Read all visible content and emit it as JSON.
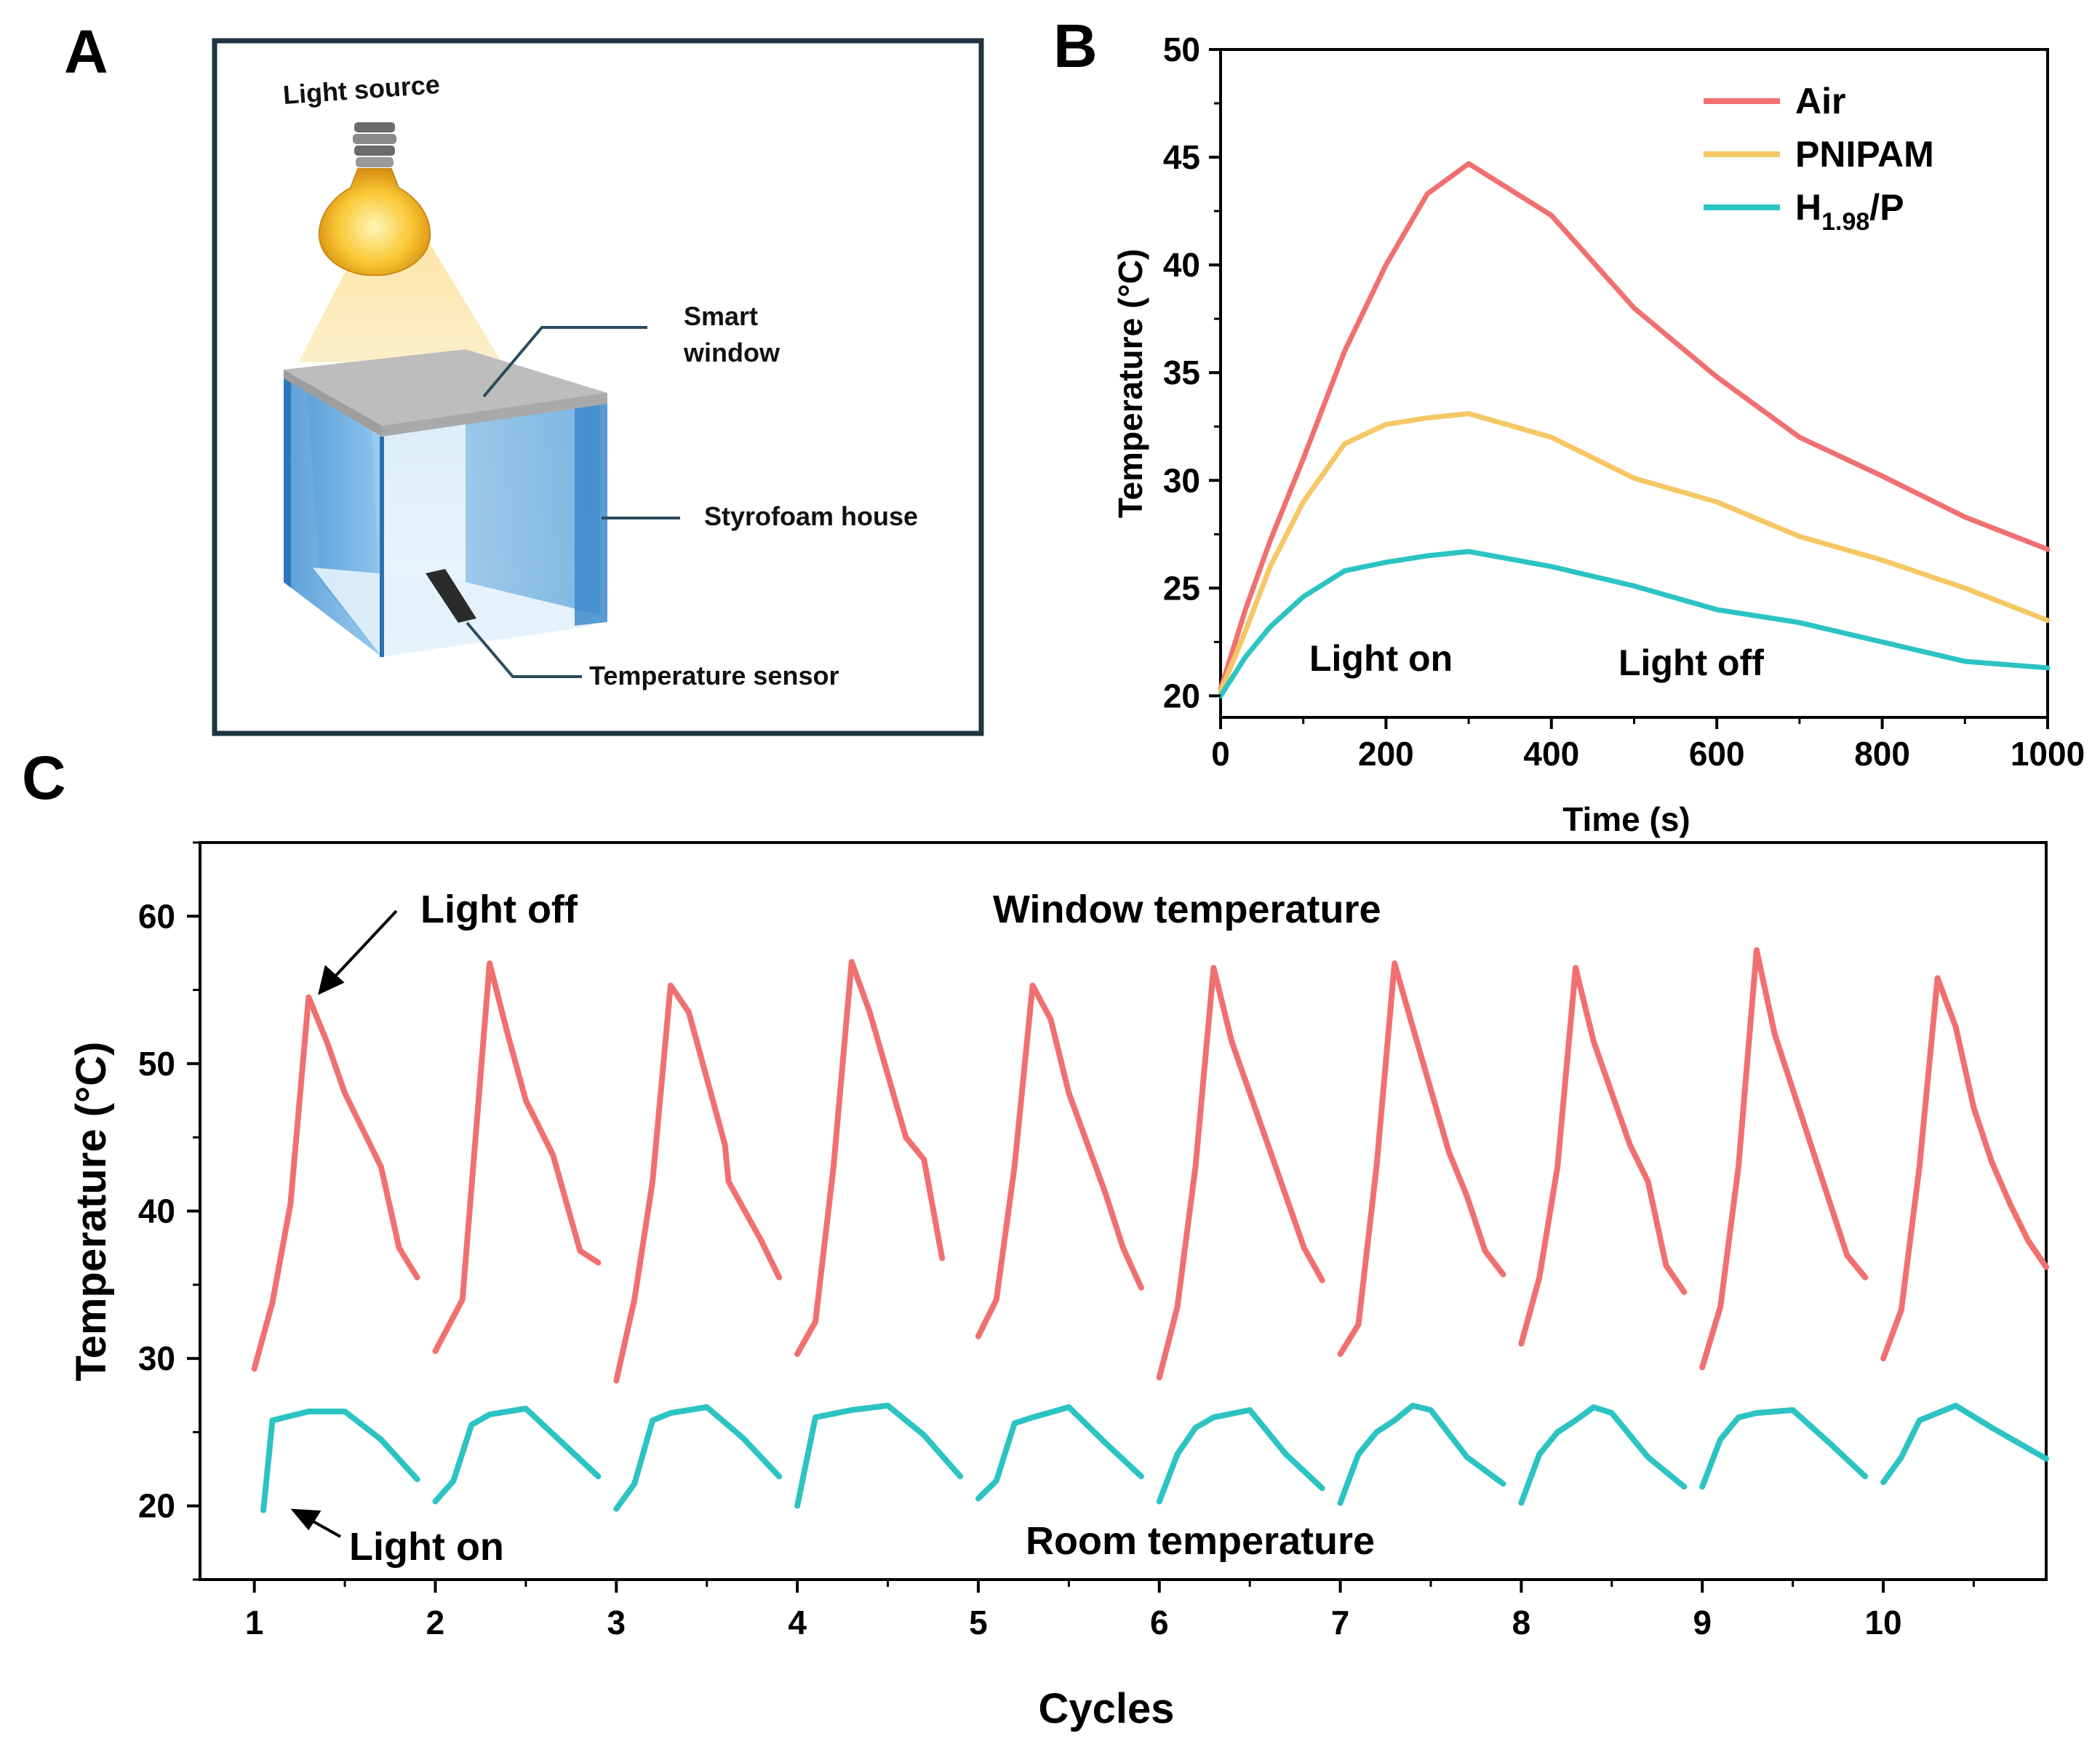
{
  "panels": {
    "a": "A",
    "b": "B",
    "c": "C"
  },
  "diagram": {
    "light_source": "Light source",
    "smart_window_line1": "Smart",
    "smart_window_line2": "window",
    "styrofoam_house": "Styrofoam house",
    "temperature_sensor": "Temperature sensor"
  },
  "colors": {
    "air": "#F07070",
    "pnipam": "#F5C765",
    "h198p": "#2CC3C3",
    "frame_dark": "#1F3440"
  },
  "chart_data": [
    {
      "id": "B",
      "type": "line",
      "title": "",
      "xlabel": "Time (s)",
      "ylabel": "Temperature (°C)",
      "xlim": [
        0,
        1000
      ],
      "ylim": [
        19,
        50
      ],
      "xticks": [
        0,
        200,
        400,
        600,
        800,
        1000
      ],
      "yticks": [
        20,
        25,
        30,
        35,
        40,
        45,
        50
      ],
      "legend": "top-right",
      "annotations": [
        "Light on",
        "Light off"
      ],
      "series": [
        {
          "name": "Air",
          "color": "#F07070",
          "x": [
            0,
            30,
            60,
            100,
            150,
            200,
            250,
            300,
            400,
            500,
            600,
            700,
            800,
            900,
            1000
          ],
          "y": [
            20.3,
            24.0,
            27.2,
            31.0,
            36.0,
            40.0,
            43.3,
            44.7,
            42.3,
            38.0,
            34.8,
            32.0,
            30.2,
            28.3,
            26.8
          ]
        },
        {
          "name": "PNIPAM",
          "color": "#F5C765",
          "x": [
            0,
            30,
            60,
            100,
            150,
            200,
            250,
            300,
            400,
            500,
            600,
            700,
            800,
            900,
            1000
          ],
          "y": [
            20.2,
            23.0,
            26.0,
            29.0,
            31.7,
            32.6,
            32.9,
            33.1,
            32.0,
            30.1,
            29.0,
            27.4,
            26.3,
            25.0,
            23.5
          ]
        },
        {
          "name": "H1.98/P",
          "name_main": "H",
          "name_sub": "1.98",
          "name_tail": "/P",
          "color": "#2CC3C3",
          "x": [
            0,
            30,
            60,
            100,
            150,
            200,
            250,
            300,
            400,
            500,
            600,
            700,
            800,
            900,
            1000
          ],
          "y": [
            20.0,
            21.8,
            23.2,
            24.6,
            25.8,
            26.2,
            26.5,
            26.7,
            26.0,
            25.1,
            24.0,
            23.4,
            22.5,
            21.6,
            21.3
          ]
        }
      ]
    },
    {
      "id": "C",
      "type": "line",
      "title": "",
      "xlabel": "Cycles",
      "ylabel": "Temperature (°C)",
      "xlim": [
        0.7,
        10.9
      ],
      "ylim": [
        15,
        65
      ],
      "xticks": [
        1,
        2,
        3,
        4,
        5,
        6,
        7,
        8,
        9,
        10
      ],
      "yticks": [
        20,
        30,
        40,
        50,
        60
      ],
      "annotations": [
        "Light off",
        "Window temperature",
        "Light on",
        "Room temperature"
      ],
      "series": [
        {
          "name": "Window temperature",
          "color": "#F07070",
          "cycles": [
            {
              "x": [
                1.0,
                1.1,
                1.2,
                1.3,
                1.4,
                1.5,
                1.7,
                1.8,
                1.9
              ],
              "y": [
                29.3,
                33.8,
                40.5,
                54.5,
                51.5,
                48.0,
                43.0,
                37.5,
                35.5
              ]
            },
            {
              "x": [
                2.0,
                2.15,
                2.3,
                2.4,
                2.5,
                2.65,
                2.8,
                2.9
              ],
              "y": [
                30.5,
                34.0,
                56.8,
                52.0,
                47.5,
                43.8,
                37.3,
                36.5
              ]
            },
            {
              "x": [
                3.0,
                3.1,
                3.2,
                3.3,
                3.4,
                3.6,
                3.62,
                3.8,
                3.9
              ],
              "y": [
                28.5,
                34.0,
                42.0,
                55.3,
                53.5,
                44.5,
                42.0,
                38.0,
                35.5
              ]
            },
            {
              "x": [
                4.0,
                4.1,
                4.2,
                4.3,
                4.4,
                4.6,
                4.7,
                4.8
              ],
              "y": [
                30.3,
                32.5,
                43.0,
                56.9,
                53.5,
                45.0,
                43.5,
                36.8
              ]
            },
            {
              "x": [
                5.0,
                5.1,
                5.2,
                5.3,
                5.4,
                5.5,
                5.7,
                5.8,
                5.9
              ],
              "y": [
                31.5,
                34.0,
                43.0,
                55.3,
                53.0,
                48.0,
                41.3,
                37.5,
                34.8
              ]
            },
            {
              "x": [
                6.0,
                6.1,
                6.2,
                6.3,
                6.4,
                6.6,
                6.8,
                6.9
              ],
              "y": [
                28.7,
                33.5,
                43.0,
                56.5,
                51.5,
                44.5,
                37.5,
                35.3
              ]
            },
            {
              "x": [
                7.0,
                7.1,
                7.2,
                7.3,
                7.4,
                7.6,
                7.7,
                7.8,
                7.9
              ],
              "y": [
                30.3,
                32.3,
                43.0,
                56.8,
                52.5,
                44.0,
                41.0,
                37.3,
                35.7
              ]
            },
            {
              "x": [
                8.0,
                8.1,
                8.2,
                8.3,
                8.4,
                8.6,
                8.7,
                8.8,
                8.9
              ],
              "y": [
                31.0,
                35.5,
                43.0,
                56.5,
                51.5,
                44.5,
                42.0,
                36.3,
                34.5
              ]
            },
            {
              "x": [
                9.0,
                9.1,
                9.2,
                9.3,
                9.4,
                9.6,
                9.8,
                9.9
              ],
              "y": [
                29.4,
                33.5,
                43.0,
                57.7,
                52.0,
                44.5,
                37.0,
                35.5
              ]
            },
            {
              "x": [
                10.0,
                10.1,
                10.2,
                10.3,
                10.4,
                10.5,
                10.6,
                10.7,
                10.8,
                10.9
              ],
              "y": [
                30.0,
                33.3,
                43.0,
                55.8,
                52.5,
                47.0,
                43.3,
                40.5,
                38.0,
                36.2
              ]
            }
          ]
        },
        {
          "name": "Room temperature",
          "color": "#2CC3C3",
          "cycles": [
            {
              "x": [
                1.05,
                1.1,
                1.3,
                1.5,
                1.7,
                1.9
              ],
              "y": [
                19.7,
                25.8,
                26.4,
                26.4,
                24.5,
                21.8
              ]
            },
            {
              "x": [
                2.0,
                2.1,
                2.2,
                2.3,
                2.5,
                2.7,
                2.9
              ],
              "y": [
                20.3,
                21.7,
                25.5,
                26.2,
                26.6,
                24.3,
                22.0
              ]
            },
            {
              "x": [
                3.0,
                3.1,
                3.2,
                3.3,
                3.5,
                3.7,
                3.9
              ],
              "y": [
                19.8,
                21.5,
                25.8,
                26.3,
                26.7,
                24.6,
                22.0
              ]
            },
            {
              "x": [
                4.0,
                4.1,
                4.3,
                4.5,
                4.7,
                4.9
              ],
              "y": [
                20.0,
                26.0,
                26.5,
                26.8,
                24.8,
                22.0
              ]
            },
            {
              "x": [
                5.0,
                5.1,
                5.2,
                5.3,
                5.5,
                5.7,
                5.9
              ],
              "y": [
                20.5,
                21.7,
                25.6,
                26.0,
                26.7,
                24.3,
                22.0
              ]
            },
            {
              "x": [
                6.0,
                6.1,
                6.2,
                6.3,
                6.5,
                6.7,
                6.9
              ],
              "y": [
                20.3,
                23.5,
                25.3,
                26.0,
                26.5,
                23.5,
                21.2
              ]
            },
            {
              "x": [
                7.0,
                7.1,
                7.2,
                7.3,
                7.4,
                7.5,
                7.7,
                7.9
              ],
              "y": [
                20.2,
                23.5,
                25.0,
                25.8,
                26.8,
                26.5,
                23.3,
                21.5
              ]
            },
            {
              "x": [
                8.0,
                8.1,
                8.2,
                8.3,
                8.4,
                8.5,
                8.7,
                8.9
              ],
              "y": [
                20.2,
                23.5,
                25.0,
                25.8,
                26.7,
                26.3,
                23.3,
                21.3
              ]
            },
            {
              "x": [
                9.0,
                9.1,
                9.2,
                9.3,
                9.5,
                9.7,
                9.9
              ],
              "y": [
                21.3,
                24.5,
                26.0,
                26.3,
                26.5,
                24.3,
                22.0
              ]
            },
            {
              "x": [
                10.0,
                10.1,
                10.2,
                10.3,
                10.4,
                10.6,
                10.9
              ],
              "y": [
                21.6,
                23.3,
                25.8,
                26.3,
                26.8,
                25.3,
                23.2
              ]
            }
          ]
        }
      ]
    }
  ]
}
